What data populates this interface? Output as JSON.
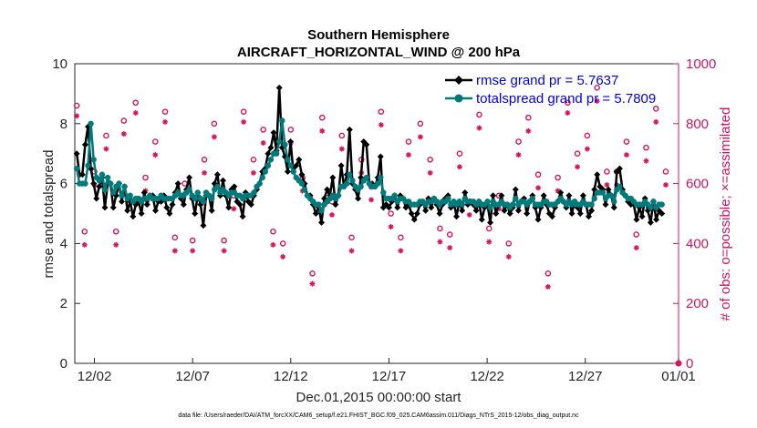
{
  "chart_data": {
    "type": "line",
    "title": "Southern Hemisphere",
    "subtitle": "AIRCRAFT_HORIZONTAL_WIND @ 200 hPa",
    "xlabel": "Dec.01,2015 00:00:00 start",
    "ylabel": "rmse and totalspread",
    "ylabel_right": "# of obs: o=possible; ×=assimilated",
    "ylim": [
      0,
      10
    ],
    "ylim_right": [
      0,
      1000
    ],
    "yticks": [
      "0",
      "2",
      "4",
      "6",
      "8",
      "10"
    ],
    "yticks_right": [
      "0",
      "200",
      "400",
      "600",
      "800",
      "1000"
    ],
    "xlim": [
      0.5,
      31.25
    ],
    "xtick_values": [
      1.5,
      6.5,
      11.5,
      16.5,
      21.5,
      26.5,
      31.5
    ],
    "xtick_labels": [
      "12/02",
      "12/07",
      "12/12",
      "12/17",
      "12/22",
      "12/27",
      "01/01"
    ],
    "footnote": "data file: /Users/raeder/DAI/ATM_forcXX/CAM6_setup/f.e21.FHIST_BGC.f09_025.CAM6assim.011/Diags_NTrS_2015-12/obs_diag_output.nc",
    "series": [
      {
        "name": "rmse grand pr = 5.7637",
        "color": "#000000",
        "marker": "diamond",
        "values": [
          7.0,
          6.3,
          6.3,
          7.3,
          7.9,
          6.5,
          6.0,
          5.5,
          5.9,
          6.2,
          5.2,
          6.0,
          6.0,
          5.2,
          5.6,
          6.0,
          5.4,
          5.9,
          5.1,
          5.4,
          4.9,
          5.3,
          5.4,
          5.0,
          5.7,
          5.3,
          5.6,
          5.6,
          5.1,
          5.4,
          5.4,
          5.6,
          5.2,
          5.0,
          5.3,
          5.7,
          6.0,
          5.5,
          5.3,
          5.8,
          6.2,
          5.5,
          5.0,
          5.6,
          5.3,
          4.6,
          5.6,
          5.6,
          5.1,
          6.0,
          6.3,
          5.6,
          6.1,
          5.6,
          5.2,
          5.8,
          5.9,
          5.4,
          5.3,
          4.9,
          5.7,
          5.4,
          5.3,
          5.6,
          5.8,
          6.0,
          6.4,
          6.5,
          7.0,
          7.2,
          7.7,
          7.1,
          9.2,
          7.2,
          6.9,
          6.4,
          7.4,
          6.4,
          6.6,
          6.8,
          6.3,
          6.0,
          5.6,
          5.6,
          5.3,
          5.0,
          5.2,
          4.7,
          5.5,
          5.8,
          5.6,
          6.2,
          5.3,
          5.6,
          6.6,
          5.9,
          6.3,
          7.8,
          6.0,
          5.8,
          5.5,
          6.2,
          7.4,
          7.3,
          6.0,
          6.0,
          5.9,
          6.2,
          6.9,
          5.2,
          5.3,
          5.2,
          5.4,
          5.6,
          5.2,
          5.6,
          5.5,
          5.2,
          5.3,
          5.0,
          4.8,
          5.0,
          5.3,
          5.4,
          5.1,
          5.5,
          5.2,
          5.5,
          5.3,
          5.0,
          5.3,
          5.5,
          5.6,
          5.2,
          5.4,
          4.9,
          5.4,
          5.1,
          5.7,
          5.3,
          5.4,
          5.3,
          5.1,
          5.4,
          4.8,
          5.2,
          5.3,
          4.7,
          5.6,
          5.0,
          5.3,
          5.6,
          5.1,
          5.3,
          5.0,
          5.2,
          5.8,
          5.1,
          5.4,
          5.5,
          5.0,
          5.4,
          5.6,
          5.2,
          4.8,
          5.2,
          5.6,
          5.3,
          5.0,
          4.9,
          5.2,
          5.4,
          5.7,
          5.4,
          5.2,
          5.6,
          5.0,
          5.4,
          5.2,
          5.0,
          5.6,
          5.3,
          4.9,
          5.1,
          5.8,
          6.3,
          5.9,
          5.8,
          5.3,
          5.8,
          5.6,
          5.2,
          6.4,
          6.5,
          5.8,
          5.6,
          5.4,
          5.3,
          5.3,
          4.8,
          5.2,
          4.9,
          5.5,
          5.1,
          4.7,
          5.4,
          4.8,
          5.1,
          5.0
        ],
        "values_noise_note": ""
      },
      {
        "name": "totalspread grand pr = 5.7809",
        "color": "#007a7a",
        "marker": "circle",
        "values": [
          6.5,
          6.0,
          6.0,
          6.0,
          6.6,
          8.0,
          6.8,
          6.2,
          6.1,
          6.3,
          5.8,
          6.2,
          6.0,
          5.7,
          5.9,
          6.0,
          5.6,
          5.9,
          5.5,
          5.6,
          5.4,
          5.5,
          5.5,
          5.4,
          5.5,
          5.5,
          5.6,
          5.5,
          5.5,
          5.5,
          5.6,
          5.5,
          5.5,
          5.5,
          5.5,
          5.6,
          5.7,
          5.6,
          5.6,
          5.7,
          5.8,
          5.6,
          5.5,
          5.7,
          5.5,
          5.4,
          5.7,
          5.6,
          5.5,
          5.8,
          5.9,
          5.7,
          5.8,
          5.7,
          5.6,
          5.7,
          5.7,
          5.6,
          5.6,
          5.5,
          5.6,
          5.6,
          5.6,
          5.7,
          5.9,
          6.0,
          6.2,
          6.4,
          6.6,
          6.8,
          7.0,
          7.0,
          7.4,
          8.1,
          7.3,
          6.8,
          6.6,
          6.4,
          6.2,
          6.1,
          6.0,
          5.8,
          5.6,
          5.5,
          5.4,
          5.3,
          5.3,
          5.1,
          5.3,
          5.4,
          5.5,
          5.6,
          5.5,
          5.6,
          5.9,
          5.9,
          6.0,
          6.3,
          6.1,
          5.9,
          5.8,
          5.9,
          6.1,
          6.2,
          6.0,
          5.9,
          5.9,
          6.0,
          6.2,
          5.7,
          5.5,
          5.5,
          5.5,
          5.6,
          5.4,
          5.5,
          5.5,
          5.4,
          5.4,
          5.3,
          5.3,
          5.3,
          5.4,
          5.4,
          5.3,
          5.4,
          5.4,
          5.5,
          5.4,
          5.3,
          5.4,
          5.4,
          5.5,
          5.3,
          5.4,
          5.3,
          5.4,
          5.3,
          5.5,
          5.4,
          5.4,
          5.4,
          5.3,
          5.4,
          5.3,
          5.3,
          5.4,
          5.2,
          5.4,
          5.3,
          5.3,
          5.4,
          5.3,
          5.3,
          5.2,
          5.3,
          5.5,
          5.3,
          5.4,
          5.4,
          5.3,
          5.4,
          5.5,
          5.3,
          5.3,
          5.3,
          5.4,
          5.4,
          5.3,
          5.3,
          5.3,
          5.4,
          5.5,
          5.4,
          5.3,
          5.4,
          5.3,
          5.4,
          5.3,
          5.3,
          5.4,
          5.3,
          5.3,
          5.3,
          5.5,
          5.7,
          5.7,
          5.7,
          5.5,
          5.6,
          5.6,
          5.4,
          5.8,
          5.9,
          5.7,
          5.6,
          5.5,
          5.5,
          5.4,
          5.3,
          5.3,
          5.3,
          5.4,
          5.3,
          5.2,
          5.4,
          5.2,
          5.3,
          5.3
        ]
      }
    ],
    "obs_possible": {
      "name": "obs possible",
      "color": "#d4145a",
      "marker": "circle",
      "times": [
        0.6,
        1.0,
        1.5,
        2.1,
        2.6,
        3.0,
        3.6,
        4.1,
        4.6,
        5.1,
        5.6,
        6.1,
        6.5,
        7.1,
        7.6,
        8.1,
        8.6,
        9.1,
        9.6,
        10.1,
        10.6,
        11.1,
        11.5,
        12.1,
        12.6,
        13.1,
        13.6,
        14.1,
        14.6,
        15.1,
        15.6,
        16.1,
        16.6,
        17.1,
        17.5,
        18.1,
        18.6,
        19.1,
        19.6,
        20.1,
        20.6,
        21.1,
        21.6,
        22.1,
        22.6,
        23.1,
        23.6,
        24.1,
        24.6,
        25.1,
        25.6,
        26.1,
        26.6,
        27.1,
        27.6,
        28.1,
        28.6,
        29.1,
        29.6,
        30.1,
        30.6
      ],
      "values": [
        860,
        440,
        640,
        760,
        440,
        810,
        870,
        620,
        740,
        840,
        420,
        600,
        410,
        680,
        800,
        410,
        560,
        840,
        680,
        780,
        440,
        400,
        780,
        620,
        300,
        820,
        540,
        760,
        420,
        680,
        590,
        840,
        500,
        420,
        740,
        800,
        680,
        450,
        430,
        700,
        540,
        830,
        450,
        560,
        400,
        740,
        820,
        630,
        300,
        620,
        870,
        700,
        760,
        920,
        640,
        640,
        740,
        430,
        720,
        850,
        640
      ],
      "flag": "max value plotted at 1000 near end of month axis (01/01) on right axis: 0 at ~31.2"
    },
    "obs_assimilated": {
      "name": "obs assimilated",
      "color": "#d4145a",
      "marker": "asterisk",
      "times": [
        0.6,
        1.0,
        1.5,
        2.1,
        2.6,
        3.0,
        3.6,
        4.1,
        4.6,
        5.1,
        5.6,
        6.1,
        6.5,
        7.1,
        7.6,
        8.1,
        8.6,
        9.1,
        9.6,
        10.1,
        10.6,
        11.1,
        11.5,
        12.1,
        12.6,
        13.1,
        13.6,
        14.1,
        14.6,
        15.1,
        15.6,
        16.1,
        16.6,
        17.1,
        17.5,
        18.1,
        18.6,
        19.1,
        19.6,
        20.1,
        20.6,
        21.1,
        21.6,
        22.1,
        22.6,
        23.1,
        23.6,
        24.1,
        24.6,
        25.1,
        25.6,
        26.1,
        26.6,
        27.1,
        27.6,
        28.1,
        28.6,
        29.1,
        29.6,
        30.1,
        30.6
      ],
      "values": [
        850,
        420,
        620,
        740,
        420,
        790,
        860,
        600,
        720,
        830,
        400,
        590,
        400,
        660,
        780,
        400,
        540,
        830,
        660,
        760,
        420,
        380,
        760,
        600,
        290,
        800,
        520,
        740,
        400,
        660,
        570,
        820,
        480,
        400,
        720,
        780,
        660,
        430,
        410,
        680,
        520,
        810,
        430,
        540,
        380,
        720,
        800,
        610,
        280,
        600,
        860,
        680,
        740,
        900,
        620,
        620,
        720,
        410,
        700,
        830,
        620
      ]
    },
    "legend_position": "top-right"
  }
}
